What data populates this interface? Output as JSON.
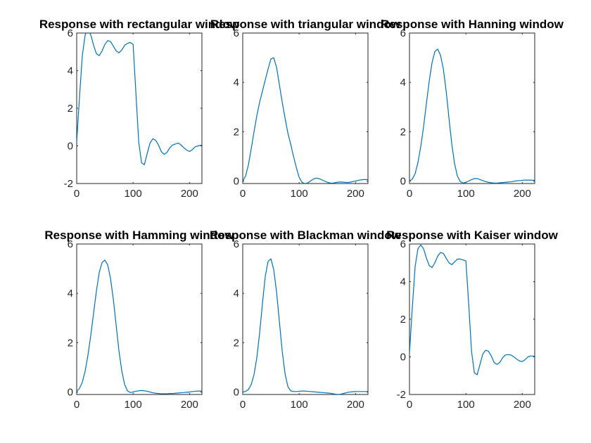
{
  "chart_data": [
    {
      "type": "line",
      "title": "Response with rectangular window",
      "xlabel": "",
      "ylabel": "",
      "xlim": [
        0,
        222
      ],
      "ylim": [
        -2,
        6
      ],
      "xticks": [
        0,
        100,
        200
      ],
      "yticks": [
        -2,
        0,
        2,
        4,
        6
      ],
      "grid": false,
      "series": [
        {
          "name": "rectangular",
          "color": "#0072BD",
          "x": [
            0,
            5,
            10,
            15,
            20,
            25,
            30,
            35,
            40,
            45,
            50,
            55,
            60,
            65,
            70,
            75,
            80,
            85,
            90,
            95,
            100,
            105,
            110,
            115,
            120,
            125,
            130,
            135,
            140,
            145,
            150,
            155,
            160,
            165,
            170,
            175,
            180,
            185,
            190,
            195,
            200,
            205,
            210,
            215,
            222
          ],
          "values": [
            0.2,
            2.6,
            4.8,
            5.9,
            6.15,
            5.9,
            5.35,
            4.9,
            4.8,
            5.05,
            5.4,
            5.6,
            5.55,
            5.3,
            5.05,
            4.95,
            5.1,
            5.35,
            5.45,
            5.5,
            5.4,
            2.8,
            0.2,
            -0.9,
            -1.0,
            -0.4,
            0.15,
            0.38,
            0.3,
            0.05,
            -0.3,
            -0.45,
            -0.35,
            -0.1,
            0.05,
            0.1,
            0.15,
            0.05,
            -0.1,
            -0.22,
            -0.3,
            -0.2,
            -0.05,
            0.0,
            0.05
          ]
        }
      ]
    },
    {
      "type": "line",
      "title": "Response with triangular window",
      "xlabel": "",
      "ylabel": "",
      "xlim": [
        0,
        222
      ],
      "ylim": [
        -0.1,
        6
      ],
      "xticks": [
        0,
        100,
        200
      ],
      "yticks": [
        0,
        2,
        4,
        6
      ],
      "grid": false,
      "series": [
        {
          "name": "triangular",
          "color": "#0072BD",
          "x": [
            0,
            5,
            10,
            15,
            20,
            25,
            30,
            35,
            40,
            45,
            50,
            55,
            60,
            65,
            70,
            75,
            80,
            85,
            90,
            95,
            100,
            105,
            110,
            115,
            120,
            125,
            130,
            135,
            140,
            145,
            150,
            155,
            160,
            165,
            170,
            175,
            180,
            185,
            190,
            195,
            200,
            205,
            210,
            215,
            222
          ],
          "values": [
            0.0,
            0.2,
            0.65,
            1.3,
            2.0,
            2.65,
            3.2,
            3.65,
            4.1,
            4.55,
            4.95,
            5.0,
            4.6,
            3.9,
            3.2,
            2.55,
            1.95,
            1.5,
            1.0,
            0.55,
            0.15,
            -0.05,
            -0.1,
            -0.08,
            0.0,
            0.08,
            0.12,
            0.1,
            0.05,
            0.0,
            -0.05,
            -0.08,
            -0.08,
            -0.06,
            -0.04,
            -0.04,
            -0.05,
            -0.06,
            -0.05,
            -0.02,
            0.0,
            0.03,
            0.05,
            0.06,
            0.06
          ]
        }
      ]
    },
    {
      "type": "line",
      "title": "Response with Hanning window",
      "xlabel": "",
      "ylabel": "",
      "xlim": [
        0,
        222
      ],
      "ylim": [
        -0.1,
        6
      ],
      "xticks": [
        0,
        100,
        200
      ],
      "yticks": [
        0,
        2,
        4,
        6
      ],
      "grid": false,
      "series": [
        {
          "name": "Hanning",
          "color": "#0072BD",
          "x": [
            0,
            5,
            10,
            15,
            20,
            25,
            30,
            35,
            40,
            45,
            50,
            55,
            60,
            65,
            70,
            75,
            80,
            85,
            90,
            95,
            100,
            105,
            110,
            115,
            120,
            125,
            130,
            135,
            140,
            145,
            150,
            155,
            160,
            165,
            170,
            175,
            180,
            185,
            190,
            195,
            200,
            205,
            210,
            215,
            222
          ],
          "values": [
            0.0,
            0.08,
            0.3,
            0.75,
            1.4,
            2.2,
            3.15,
            4.05,
            4.8,
            5.25,
            5.35,
            5.1,
            4.55,
            3.65,
            2.55,
            1.5,
            0.7,
            0.2,
            -0.02,
            -0.08,
            -0.05,
            0.0,
            0.06,
            0.1,
            0.1,
            0.06,
            0.02,
            -0.02,
            -0.05,
            -0.07,
            -0.08,
            -0.08,
            -0.07,
            -0.06,
            -0.05,
            -0.04,
            -0.03,
            -0.01,
            0.01,
            0.02,
            0.03,
            0.04,
            0.04,
            0.04,
            0.03
          ]
        }
      ]
    },
    {
      "type": "line",
      "title": "Response with Hamming window",
      "xlabel": "",
      "ylabel": "",
      "xlim": [
        0,
        222
      ],
      "ylim": [
        -0.1,
        6
      ],
      "xticks": [
        0,
        100,
        200
      ],
      "yticks": [
        0,
        2,
        4,
        6
      ],
      "grid": false,
      "series": [
        {
          "name": "Hamming",
          "color": "#0072BD",
          "x": [
            0,
            5,
            10,
            15,
            20,
            25,
            30,
            35,
            40,
            45,
            50,
            55,
            60,
            65,
            70,
            75,
            80,
            85,
            90,
            95,
            100,
            105,
            110,
            115,
            120,
            125,
            130,
            135,
            140,
            145,
            150,
            155,
            160,
            165,
            170,
            175,
            180,
            185,
            190,
            195,
            200,
            205,
            210,
            215,
            222
          ],
          "values": [
            0.03,
            0.15,
            0.4,
            0.85,
            1.5,
            2.3,
            3.2,
            4.1,
            4.85,
            5.25,
            5.35,
            5.15,
            4.6,
            3.75,
            2.7,
            1.65,
            0.85,
            0.3,
            0.05,
            -0.02,
            0.0,
            0.03,
            0.05,
            0.06,
            0.05,
            0.03,
            0.0,
            -0.03,
            -0.05,
            -0.06,
            -0.07,
            -0.07,
            -0.07,
            -0.06,
            -0.06,
            -0.05,
            -0.04,
            -0.03,
            -0.02,
            -0.01,
            0.0,
            0.02,
            0.03,
            0.04,
            0.04
          ]
        }
      ]
    },
    {
      "type": "line",
      "title": "Response with Blackman window",
      "xlabel": "",
      "ylabel": "",
      "xlim": [
        0,
        222
      ],
      "ylim": [
        -0.1,
        6
      ],
      "xticks": [
        0,
        100,
        200
      ],
      "yticks": [
        0,
        2,
        4,
        6
      ],
      "grid": false,
      "series": [
        {
          "name": "Blackman",
          "color": "#0072BD",
          "x": [
            0,
            5,
            10,
            15,
            20,
            25,
            30,
            35,
            40,
            45,
            50,
            55,
            60,
            65,
            70,
            75,
            80,
            85,
            90,
            95,
            100,
            105,
            110,
            115,
            120,
            125,
            130,
            135,
            140,
            145,
            150,
            155,
            160,
            165,
            170,
            175,
            180,
            185,
            190,
            195,
            200,
            205,
            210,
            215,
            222
          ],
          "values": [
            0.0,
            0.02,
            0.1,
            0.3,
            0.7,
            1.4,
            2.4,
            3.6,
            4.7,
            5.3,
            5.4,
            4.95,
            4.05,
            2.85,
            1.65,
            0.75,
            0.22,
            0.05,
            0.02,
            0.02,
            0.03,
            0.04,
            0.04,
            0.03,
            0.02,
            0.01,
            0.0,
            -0.01,
            -0.02,
            -0.03,
            -0.04,
            -0.05,
            -0.07,
            -0.09,
            -0.1,
            -0.08,
            -0.05,
            -0.02,
            0.0,
            0.01,
            0.02,
            0.02,
            0.02,
            0.02,
            0.02
          ]
        }
      ]
    },
    {
      "type": "line",
      "title": "Response with Kaiser window",
      "xlabel": "",
      "ylabel": "",
      "xlim": [
        0,
        222
      ],
      "ylim": [
        -2,
        6
      ],
      "xticks": [
        0,
        100,
        200
      ],
      "yticks": [
        -2,
        0,
        2,
        4,
        6
      ],
      "grid": false,
      "series": [
        {
          "name": "Kaiser",
          "color": "#0072BD",
          "x": [
            0,
            5,
            10,
            15,
            20,
            25,
            30,
            35,
            40,
            45,
            50,
            55,
            60,
            65,
            70,
            75,
            80,
            85,
            90,
            95,
            100,
            105,
            110,
            115,
            120,
            125,
            130,
            135,
            140,
            145,
            150,
            155,
            160,
            165,
            170,
            175,
            180,
            185,
            190,
            195,
            200,
            205,
            210,
            215,
            222
          ],
          "values": [
            0.2,
            2.6,
            4.8,
            5.75,
            5.95,
            5.75,
            5.25,
            4.85,
            4.75,
            5.0,
            5.35,
            5.55,
            5.5,
            5.25,
            5.0,
            4.9,
            5.05,
            5.2,
            5.2,
            5.15,
            5.1,
            2.8,
            0.3,
            -0.85,
            -0.95,
            -0.4,
            0.15,
            0.35,
            0.3,
            0.05,
            -0.3,
            -0.4,
            -0.3,
            -0.05,
            0.1,
            0.12,
            0.1,
            0.0,
            -0.12,
            -0.22,
            -0.25,
            -0.15,
            0.0,
            0.05,
            0.03
          ]
        }
      ]
    }
  ]
}
